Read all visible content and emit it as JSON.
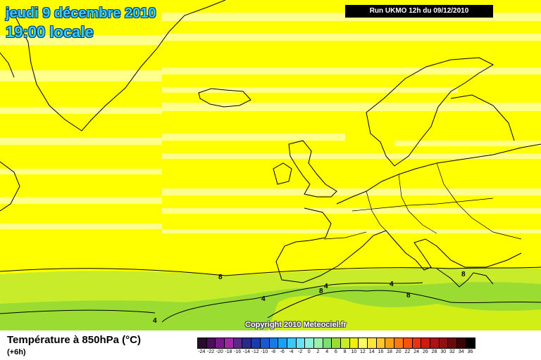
{
  "header": {
    "date_title": "jeudi 9 décembre 2010",
    "time_title": "19:00 locale",
    "run_label": "Run UKMO 12h du 09/12/2010"
  },
  "footer": {
    "variable_title": "Température à 850hPa (°C)",
    "lead_time": "(+6h)",
    "copyright": "Copyright 2010 Meteociel.fr"
  },
  "map": {
    "contour_labels": [
      {
        "text": "8"
      },
      {
        "text": "8"
      },
      {
        "text": "8"
      },
      {
        "text": "8"
      },
      {
        "text": "4"
      },
      {
        "text": "4"
      },
      {
        "text": "4"
      },
      {
        "text": "4"
      }
    ]
  },
  "legend": {
    "values": [
      "-24",
      "-22",
      "-20",
      "-18",
      "-16",
      "-14",
      "-12",
      "-10",
      "-8",
      "-6",
      "-4",
      "-2",
      "0",
      "2",
      "4",
      "6",
      "8",
      "10",
      "12",
      "14",
      "16",
      "18",
      "20",
      "22",
      "24",
      "26",
      "28",
      "30",
      "32",
      "34",
      "36"
    ],
    "colors": [
      "#2a0a2e",
      "#4a0e5a",
      "#7a1a8a",
      "#a02aa6",
      "#5a2a8a",
      "#2a2a8a",
      "#1a3ab0",
      "#1a5ad0",
      "#1a7ae0",
      "#1aa0f0",
      "#3ac8f8",
      "#6ae0f8",
      "#8ef0d8",
      "#9af2a8",
      "#7ae070",
      "#9adc32",
      "#c8ec2a",
      "#f0f000",
      "#ffff60",
      "#ffe63a",
      "#ffc828",
      "#ffa01a",
      "#ff7a14",
      "#ff5010",
      "#f03010",
      "#d01a10",
      "#b01010",
      "#901010",
      "#6a0a0a",
      "#3a0404",
      "#000000"
    ]
  },
  "colors": {
    "field_yellow": "#ffff00",
    "field_pale": "#ffff8c",
    "field_green": "#c8ec2a",
    "field_green_dark": "#9adc32",
    "coast": "#000000"
  }
}
